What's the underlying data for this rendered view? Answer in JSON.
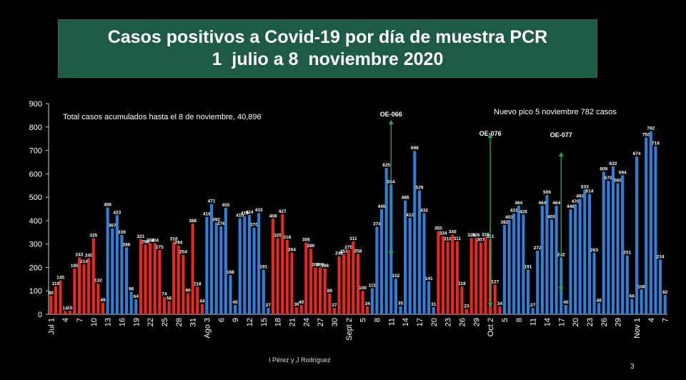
{
  "slide": {
    "title_line1": "Casos positivos a Covid-19 por día de muestra PCR",
    "title_line2": "1  julio a 8  noviembre 2020",
    "credit": "I Pérez y J Rodríguez",
    "page_number": "3"
  },
  "colors": {
    "red": "#e8271f",
    "blue": "#2f7fd6",
    "background": "#000000",
    "title_bg": "#1e5b45",
    "arrow": "#1fa35a"
  },
  "chart_data": {
    "type": "bar",
    "title": "Casos positivos a Covid-19 por día de muestra PCR",
    "ylim": [
      0,
      900
    ],
    "yticks": [
      0,
      100,
      200,
      300,
      400,
      500,
      600,
      700,
      800,
      900
    ],
    "grid": false,
    "annotations": {
      "total": "Total casos acumulados  hasta el 8 de noviembre, 40,896",
      "peak": "Nuevo pico 5 noviembre  782 casos"
    },
    "events": [
      {
        "label": "OE-066",
        "index": 72
      },
      {
        "label": "OE-076",
        "index": 93
      },
      {
        "label": "OE-077",
        "index": 108
      }
    ],
    "tick_labels": [
      {
        "index": 0,
        "label": "Jul 1"
      },
      {
        "index": 3,
        "label": "4"
      },
      {
        "index": 6,
        "label": "7"
      },
      {
        "index": 9,
        "label": "10"
      },
      {
        "index": 12,
        "label": "13"
      },
      {
        "index": 15,
        "label": "16"
      },
      {
        "index": 18,
        "label": "19"
      },
      {
        "index": 21,
        "label": "22"
      },
      {
        "index": 24,
        "label": "25"
      },
      {
        "index": 27,
        "label": "28"
      },
      {
        "index": 30,
        "label": "31"
      },
      {
        "index": 33,
        "label": "Ago 3"
      },
      {
        "index": 36,
        "label": "6"
      },
      {
        "index": 39,
        "label": "9"
      },
      {
        "index": 42,
        "label": "12"
      },
      {
        "index": 45,
        "label": "15"
      },
      {
        "index": 48,
        "label": "18"
      },
      {
        "index": 51,
        "label": "21"
      },
      {
        "index": 54,
        "label": "24"
      },
      {
        "index": 57,
        "label": "27"
      },
      {
        "index": 60,
        "label": "30"
      },
      {
        "index": 63,
        "label": "Sept 2"
      },
      {
        "index": 66,
        "label": "5"
      },
      {
        "index": 69,
        "label": "8"
      },
      {
        "index": 72,
        "label": "11"
      },
      {
        "index": 75,
        "label": "14"
      },
      {
        "index": 78,
        "label": "17"
      },
      {
        "index": 81,
        "label": "20"
      },
      {
        "index": 84,
        "label": "23"
      },
      {
        "index": 87,
        "label": "26"
      },
      {
        "index": 90,
        "label": "29"
      },
      {
        "index": 93,
        "label": "Oct 2"
      },
      {
        "index": 96,
        "label": "5"
      },
      {
        "index": 99,
        "label": "8"
      },
      {
        "index": 102,
        "label": "11"
      },
      {
        "index": 105,
        "label": "14"
      },
      {
        "index": 108,
        "label": "17"
      },
      {
        "index": 111,
        "label": "20"
      },
      {
        "index": 114,
        "label": "23"
      },
      {
        "index": 117,
        "label": "26"
      },
      {
        "index": 120,
        "label": "29"
      },
      {
        "index": 124,
        "label": "Nov 1"
      },
      {
        "index": 127,
        "label": "4"
      },
      {
        "index": 130,
        "label": "7"
      }
    ],
    "values": [
      80,
      119,
      145,
      14,
      15,
      195,
      243,
      214,
      240,
      325,
      132,
      49,
      456,
      367,
      423,
      339,
      286,
      96,
      64,
      321,
      298,
      304,
      304,
      275,
      74,
      56,
      310,
      294,
      254,
      90,
      388,
      118,
      44,
      416,
      471,
      392,
      376,
      455,
      168,
      40,
      410,
      419,
      424,
      370,
      433,
      191,
      27,
      408,
      325,
      427,
      318,
      264,
      30,
      40,
      306,
      280,
      200,
      200,
      196,
      89,
      27,
      248,
      257,
      275,
      311,
      258,
      100,
      34,
      111,
      374,
      449,
      625,
      554,
      152,
      35,
      486,
      412,
      698,
      529,
      432,
      141,
      31,
      355,
      334,
      310,
      340,
      311,
      119,
      23,
      326,
      326,
      307,
      328,
      321,
      127,
      34,
      382,
      403,
      431,
      464,
      426,
      191,
      27,
      272,
      464,
      509,
      405,
      464,
      242,
      40,
      448,
      470,
      493,
      533,
      514,
      263,
      48,
      609,
      570,
      632,
      560,
      594,
      251,
      66,
      674,
      106,
      755,
      782,
      718,
      234,
      82
    ],
    "bar_colors": [
      "r",
      "r",
      "r",
      "r",
      "r",
      "r",
      "r",
      "r",
      "r",
      "r",
      "r",
      "r",
      "b",
      "b",
      "b",
      "b",
      "b",
      "b",
      "b",
      "r",
      "r",
      "r",
      "r",
      "r",
      "r",
      "r",
      "r",
      "r",
      "r",
      "r",
      "r",
      "r",
      "r",
      "b",
      "b",
      "b",
      "b",
      "b",
      "b",
      "b",
      "b",
      "b",
      "b",
      "b",
      "b",
      "b",
      "b",
      "r",
      "r",
      "r",
      "r",
      "r",
      "r",
      "r",
      "r",
      "r",
      "r",
      "r",
      "r",
      "r",
      "r",
      "r",
      "r",
      "r",
      "r",
      "r",
      "r",
      "r",
      "b",
      "b",
      "b",
      "b",
      "b",
      "b",
      "b",
      "b",
      "b",
      "b",
      "b",
      "b",
      "b",
      "b",
      "r",
      "r",
      "r",
      "r",
      "r",
      "r",
      "r",
      "r",
      "r",
      "r",
      "r",
      "r",
      "r",
      "r",
      "b",
      "b",
      "b",
      "b",
      "b",
      "b",
      "b",
      "b",
      "b",
      "b",
      "b",
      "b",
      "b",
      "b",
      "b",
      "b",
      "b",
      "b",
      "b",
      "b",
      "b",
      "b",
      "b",
      "b",
      "b",
      "b",
      "b",
      "b",
      "b",
      "b",
      "b",
      "b",
      "b",
      "b",
      "b"
    ]
  }
}
